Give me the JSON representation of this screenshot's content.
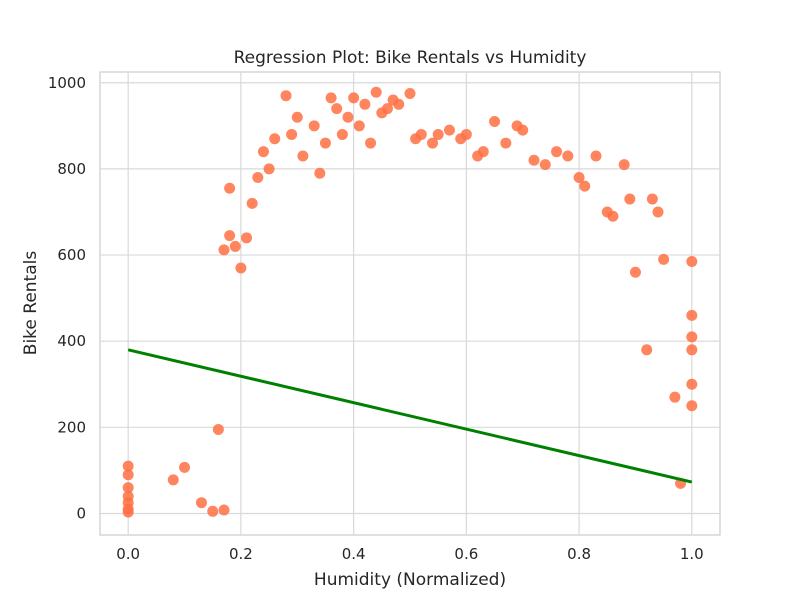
{
  "chart_data": {
    "type": "scatter",
    "title": "Regression Plot: Bike Rentals vs Humidity",
    "xlabel": "Humidity (Normalized)",
    "ylabel": "Bike Rentals",
    "xlim": [
      -0.05,
      1.05
    ],
    "ylim": [
      -50,
      1025
    ],
    "x_ticks": [
      0.0,
      0.2,
      0.4,
      0.6,
      0.8,
      1.0
    ],
    "x_tick_labels": [
      "0.0",
      "0.2",
      "0.4",
      "0.6",
      "0.8",
      "1.0"
    ],
    "y_ticks": [
      0,
      200,
      400,
      600,
      800,
      1000
    ],
    "y_tick_labels": [
      "0",
      "200",
      "400",
      "600",
      "800",
      "1000"
    ],
    "grid": true,
    "point_color": "#ff7043",
    "regression_color": "#008000",
    "regression_line": {
      "x": [
        0.0,
        1.0
      ],
      "y": [
        380,
        73
      ]
    },
    "series": [
      {
        "values": [
          [
            0.0,
            110
          ],
          [
            0.0,
            90
          ],
          [
            0.0,
            60
          ],
          [
            0.0,
            40
          ],
          [
            0.0,
            25
          ],
          [
            0.0,
            10
          ],
          [
            0.0,
            3
          ],
          [
            0.08,
            78
          ],
          [
            0.1,
            107
          ],
          [
            0.13,
            25
          ],
          [
            0.15,
            5
          ],
          [
            0.16,
            195
          ],
          [
            0.17,
            612
          ],
          [
            0.17,
            8
          ],
          [
            0.18,
            645
          ],
          [
            0.18,
            755
          ],
          [
            0.19,
            620
          ],
          [
            0.2,
            570
          ],
          [
            0.21,
            640
          ],
          [
            0.22,
            720
          ],
          [
            0.23,
            780
          ],
          [
            0.24,
            840
          ],
          [
            0.25,
            800
          ],
          [
            0.26,
            870
          ],
          [
            0.28,
            970
          ],
          [
            0.29,
            880
          ],
          [
            0.3,
            920
          ],
          [
            0.31,
            830
          ],
          [
            0.33,
            900
          ],
          [
            0.34,
            790
          ],
          [
            0.35,
            860
          ],
          [
            0.36,
            965
          ],
          [
            0.37,
            940
          ],
          [
            0.38,
            880
          ],
          [
            0.39,
            920
          ],
          [
            0.4,
            965
          ],
          [
            0.41,
            900
          ],
          [
            0.42,
            950
          ],
          [
            0.43,
            860
          ],
          [
            0.44,
            978
          ],
          [
            0.45,
            930
          ],
          [
            0.46,
            940
          ],
          [
            0.47,
            960
          ],
          [
            0.48,
            950
          ],
          [
            0.5,
            975
          ],
          [
            0.51,
            870
          ],
          [
            0.52,
            880
          ],
          [
            0.54,
            860
          ],
          [
            0.55,
            880
          ],
          [
            0.57,
            890
          ],
          [
            0.59,
            870
          ],
          [
            0.6,
            880
          ],
          [
            0.62,
            830
          ],
          [
            0.63,
            840
          ],
          [
            0.65,
            910
          ],
          [
            0.67,
            860
          ],
          [
            0.69,
            900
          ],
          [
            0.7,
            890
          ],
          [
            0.72,
            820
          ],
          [
            0.74,
            810
          ],
          [
            0.76,
            840
          ],
          [
            0.78,
            830
          ],
          [
            0.8,
            780
          ],
          [
            0.81,
            760
          ],
          [
            0.83,
            830
          ],
          [
            0.85,
            700
          ],
          [
            0.86,
            690
          ],
          [
            0.88,
            810
          ],
          [
            0.89,
            730
          ],
          [
            0.9,
            560
          ],
          [
            0.92,
            380
          ],
          [
            0.93,
            730
          ],
          [
            0.94,
            700
          ],
          [
            0.95,
            590
          ],
          [
            0.97,
            270
          ],
          [
            0.98,
            70
          ],
          [
            1.0,
            585
          ],
          [
            1.0,
            460
          ],
          [
            1.0,
            410
          ],
          [
            1.0,
            380
          ],
          [
            1.0,
            300
          ],
          [
            1.0,
            250
          ]
        ]
      }
    ]
  }
}
